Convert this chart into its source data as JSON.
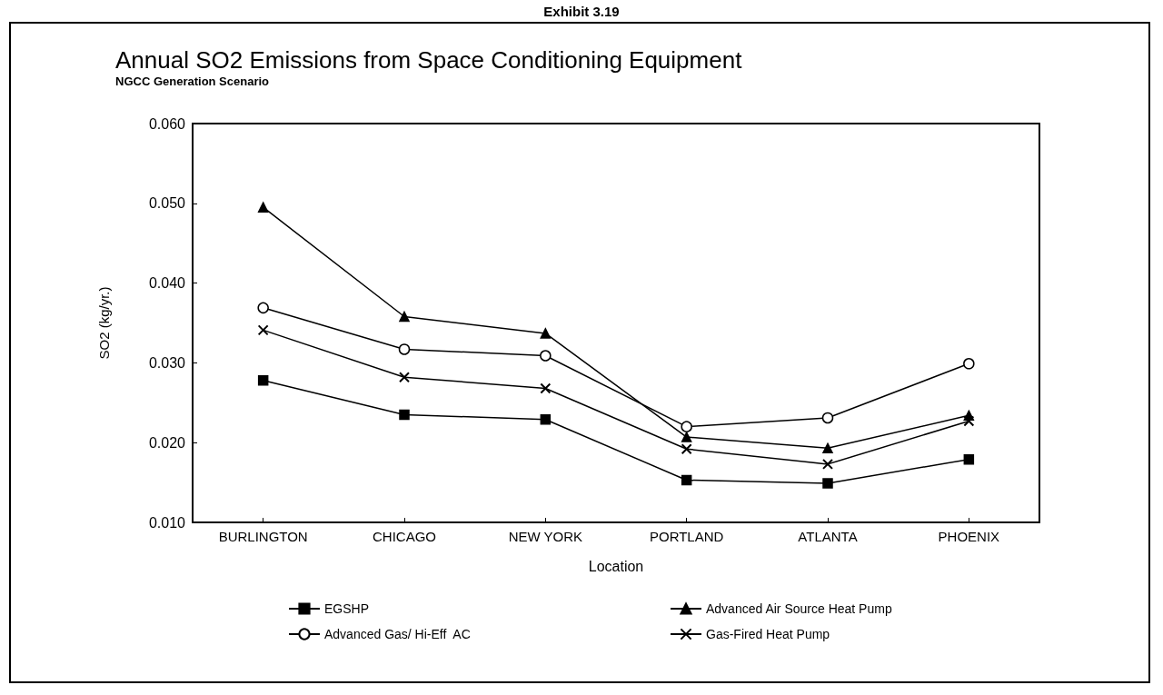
{
  "chart_data": {
    "type": "line",
    "title": "Annual SO2 Emissions from Space Conditioning Equipment",
    "subtitle": "NGCC Generation Scenario",
    "xlabel": "Location",
    "ylabel": "SO2 (kg/yr.)",
    "annotations": [
      "Exhibit 3.19"
    ],
    "categories": [
      "BURLINGTON",
      "CHICAGO",
      "NEW YORK",
      "PORTLAND",
      "ATLANTA",
      "PHOENIX"
    ],
    "series": [
      {
        "name": "EGSHP",
        "color": "#000000",
        "marker": "square",
        "values": [
          0.0278,
          0.0235,
          0.0229,
          0.0153,
          0.0149,
          0.0179
        ]
      },
      {
        "name": "Advanced Air Source Heat Pump",
        "color": "#000000",
        "marker": "triangle",
        "values": [
          0.0495,
          0.0358,
          0.0337,
          0.0207,
          0.0193,
          0.0234
        ]
      },
      {
        "name": "Advanced Gas/ Hi-Eff  AC",
        "color": "#000000",
        "marker": "circle",
        "values": [
          0.0369,
          0.0317,
          0.0309,
          0.022,
          0.0231,
          0.0299
        ]
      },
      {
        "name": "Gas-Fired Heat Pump",
        "color": "#000000",
        "marker": "cross",
        "values": [
          0.0341,
          0.0282,
          0.0268,
          0.0192,
          0.0173,
          0.0227
        ]
      }
    ],
    "ylim": [
      0.01,
      0.06
    ],
    "yticks": [
      {
        "value": 0.01,
        "label": "0.010"
      },
      {
        "value": 0.02,
        "label": "0.020"
      },
      {
        "value": 0.03,
        "label": "0.030"
      },
      {
        "value": 0.04,
        "label": "0.040"
      },
      {
        "value": 0.05,
        "label": "0.050"
      },
      {
        "value": 0.06,
        "label": "0.060"
      }
    ],
    "grid": false,
    "legend": "bottom",
    "line_style": "solid"
  }
}
